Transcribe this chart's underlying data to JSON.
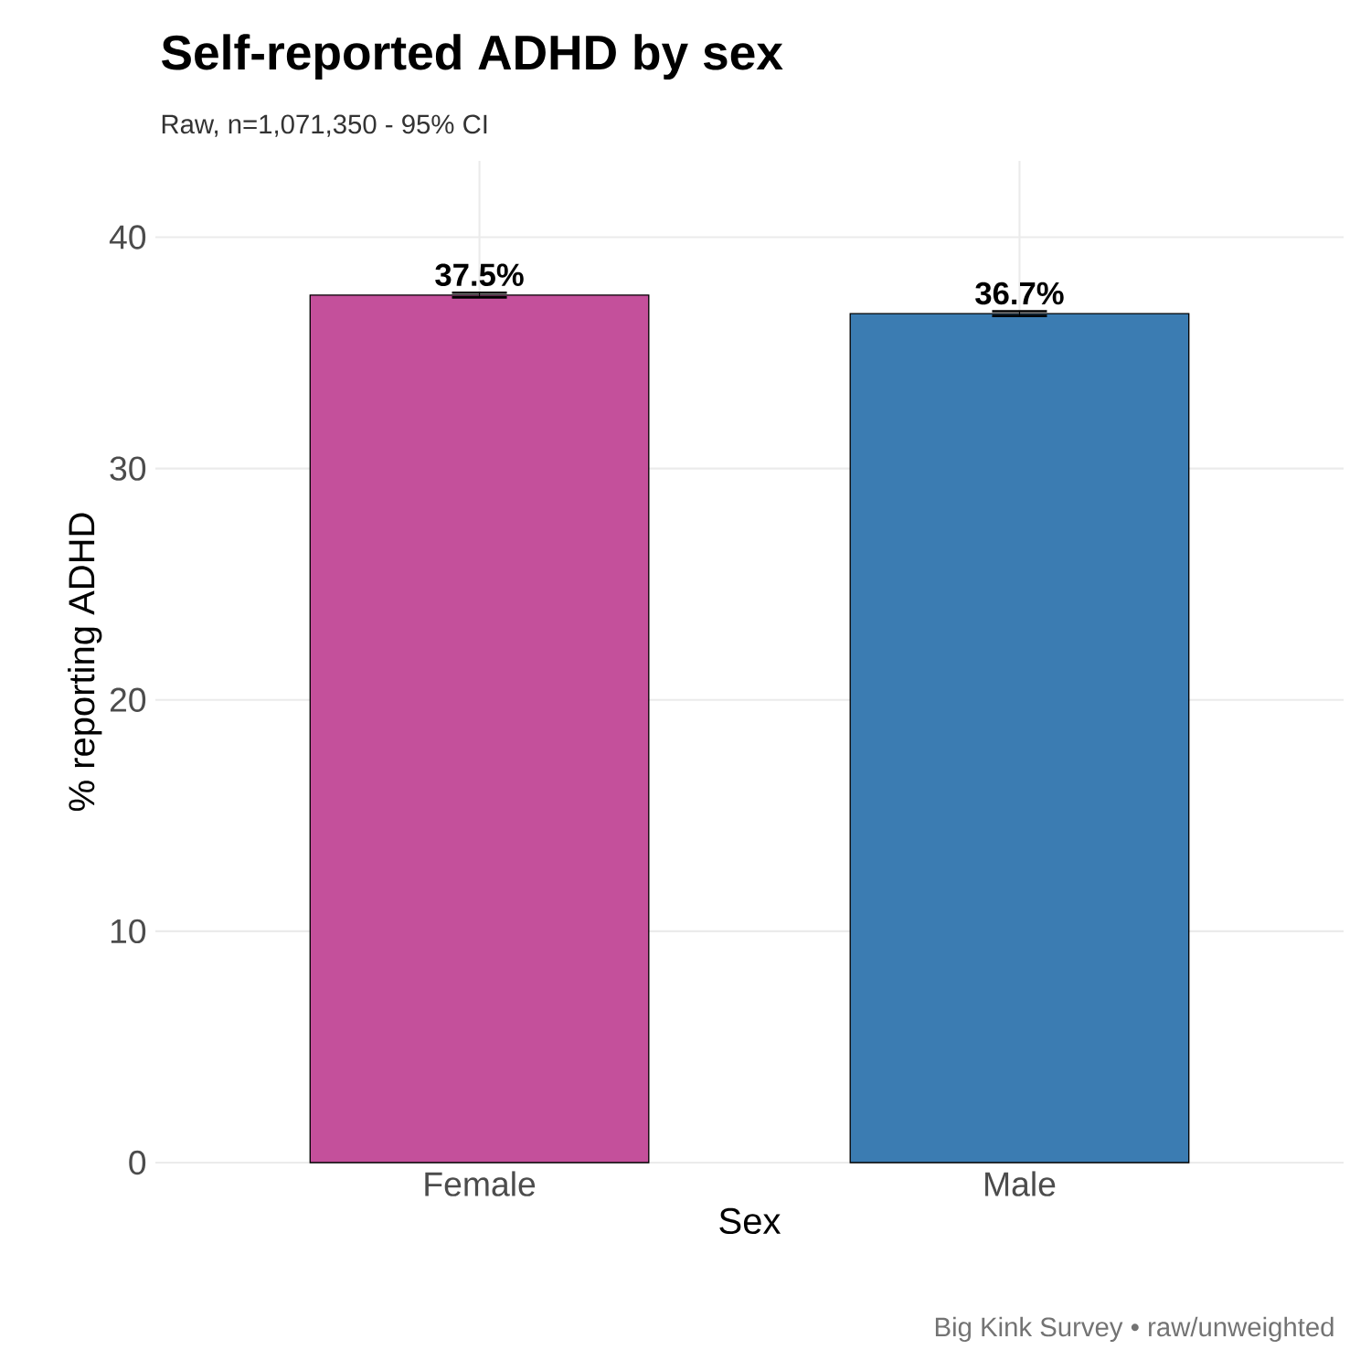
{
  "chart_data": {
    "type": "bar",
    "title": "Self-reported ADHD by sex",
    "subtitle": "Raw, n=1,071,350  -  95% CI",
    "xlabel": "Sex",
    "ylabel": "% reporting ADHD",
    "categories": [
      "Female",
      "Male"
    ],
    "values": [
      37.5,
      36.7
    ],
    "colors": [
      "#c4509b",
      "#3b7cb2"
    ],
    "errors": [
      0.1,
      0.1
    ],
    "value_labels": [
      "37.5%",
      "36.7%"
    ],
    "ylim": [
      0,
      43.3
    ],
    "yticks": [
      0,
      10,
      20,
      30,
      40
    ],
    "grid": true,
    "annotations": [
      "Big Kink Survey  •  raw/unweighted"
    ]
  }
}
